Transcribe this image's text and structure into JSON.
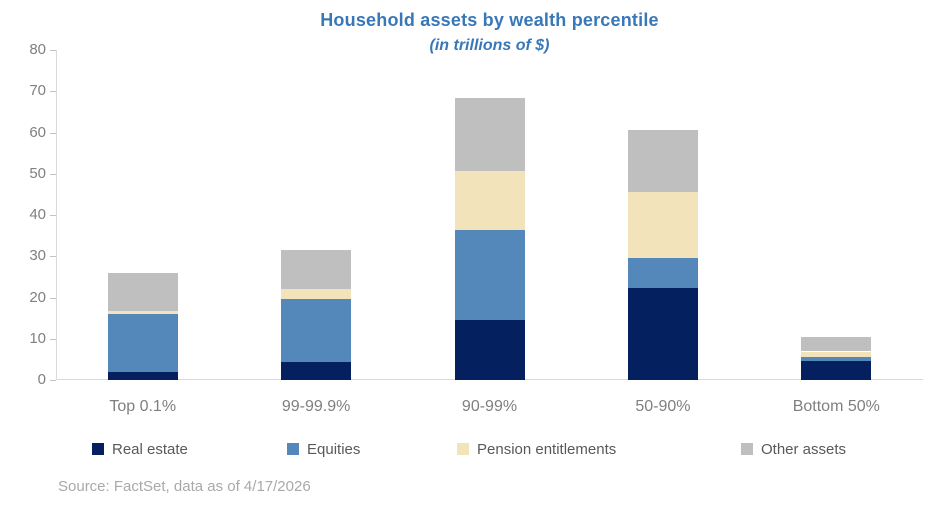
{
  "chart_data": {
    "type": "bar",
    "stacked": true,
    "title": "Household assets by wealth percentile",
    "subtitle": "(in trillions of $)",
    "categories": [
      "Top 0.1%",
      "99-99.9%",
      "90-99%",
      "50-90%",
      "Bottom 50%"
    ],
    "series": [
      {
        "name": "Real estate",
        "color": "#05205e",
        "values": [
          2.0,
          4.4,
          14.5,
          22.4,
          4.7
        ]
      },
      {
        "name": "Equities",
        "color": "#5488ba",
        "values": [
          13.9,
          15.2,
          21.9,
          7.1,
          0.8
        ]
      },
      {
        "name": "Pension entitlements",
        "color": "#f3e3ba",
        "values": [
          0.8,
          2.5,
          14.3,
          16.0,
          1.4
        ]
      },
      {
        "name": "Other assets",
        "color": "#bfbfbf",
        "values": [
          9.2,
          9.4,
          17.7,
          15.1,
          3.6
        ]
      }
    ],
    "totals": [
      25.9,
      31.5,
      68.4,
      60.6,
      10.5
    ],
    "ylim": [
      0,
      80
    ],
    "yticks": [
      0,
      10,
      20,
      30,
      40,
      50,
      60,
      70,
      80
    ],
    "xlabel": "",
    "ylabel": "",
    "grid": false,
    "legend_position": "bottom"
  },
  "colors": {
    "title_text": "#3878b8",
    "axis_label_text": "#808080",
    "category_label_text": "#7f7f7f",
    "legend_text": "#595959",
    "source_text": "#a9a9a9",
    "axis_line": "#d9d9d9"
  },
  "source_note": "Source: FactSet, data as of 4/17/2026"
}
